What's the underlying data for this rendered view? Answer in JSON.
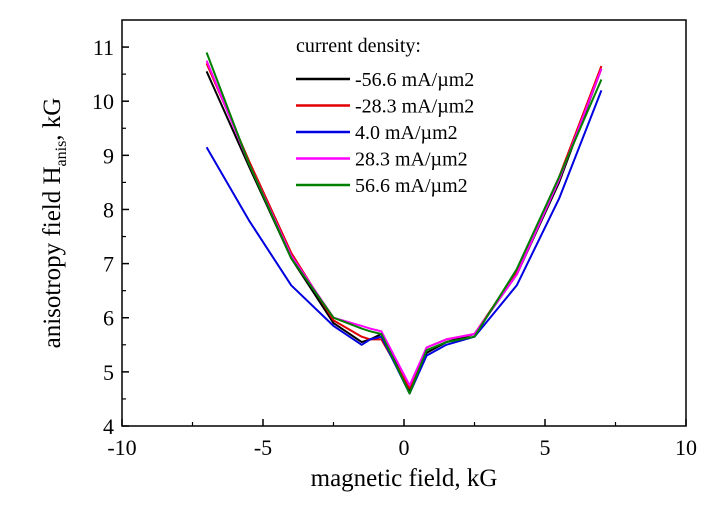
{
  "chart_data": {
    "type": "line",
    "xlabel": "magnetic field, kG",
    "ylabel_main": "anisotropy field H",
    "ylabel_sub": "anis",
    "ylabel_tail": ", kG",
    "xlim": [
      -10,
      10
    ],
    "ylim": [
      4,
      11.5
    ],
    "xticks": [
      -10,
      -5,
      0,
      5,
      10
    ],
    "yticks": [
      4,
      5,
      6,
      7,
      8,
      9,
      10,
      11
    ],
    "grid": false,
    "legend_title": "current density:",
    "legend_position": "top-center",
    "series": [
      {
        "name": "-56.6 mA/µm2",
        "color": "#000000",
        "x": [
          -7,
          -5.5,
          -4,
          -2.5,
          -1.5,
          -1.2,
          -0.8,
          0.2,
          0.8,
          1.5,
          2.5,
          4,
          5.5,
          7
        ],
        "y": [
          10.55,
          8.8,
          7.1,
          5.9,
          5.55,
          5.6,
          5.7,
          4.65,
          5.35,
          5.55,
          5.7,
          6.8,
          8.5,
          10.6
        ]
      },
      {
        "name": "-28.3 mA/µm2",
        "color": "#e00000",
        "x": [
          -7,
          -5.5,
          -4,
          -2.5,
          -1.5,
          -1.2,
          -0.8,
          0.2,
          0.8,
          1.5,
          2.5,
          4,
          5.5,
          7
        ],
        "y": [
          10.7,
          8.9,
          7.2,
          5.95,
          5.65,
          5.6,
          5.6,
          4.7,
          5.45,
          5.6,
          5.7,
          6.85,
          8.6,
          10.65
        ]
      },
      {
        "name": "4.0 mA/µm2",
        "color": "#0000e0",
        "x": [
          -7,
          -5.5,
          -4,
          -2.5,
          -1.5,
          -1.2,
          -0.8,
          0.2,
          0.8,
          1.5,
          2.5,
          4,
          5.5,
          7
        ],
        "y": [
          9.15,
          7.8,
          6.6,
          5.85,
          5.5,
          5.6,
          5.65,
          4.6,
          5.3,
          5.5,
          5.65,
          6.6,
          8.2,
          10.2
        ]
      },
      {
        "name": "28.3 mA/µm2",
        "color": "#ff00ff",
        "x": [
          -7,
          -5.5,
          -4,
          -2.5,
          -1.5,
          -1.2,
          -0.8,
          0.2,
          0.8,
          1.5,
          2.5,
          4,
          5.5,
          7
        ],
        "y": [
          10.75,
          8.85,
          7.15,
          6.0,
          5.85,
          5.8,
          5.75,
          4.75,
          5.45,
          5.6,
          5.7,
          6.8,
          8.55,
          10.6
        ]
      },
      {
        "name": "56.6 mA/µm2",
        "color": "#008000",
        "x": [
          -7,
          -5.5,
          -4,
          -2.5,
          -1.5,
          -1.2,
          -0.8,
          0.2,
          0.8,
          1.5,
          2.5,
          4,
          5.5,
          7
        ],
        "y": [
          10.9,
          8.85,
          7.1,
          6.0,
          5.8,
          5.75,
          5.7,
          4.6,
          5.4,
          5.55,
          5.65,
          6.9,
          8.6,
          10.4
        ]
      }
    ]
  }
}
